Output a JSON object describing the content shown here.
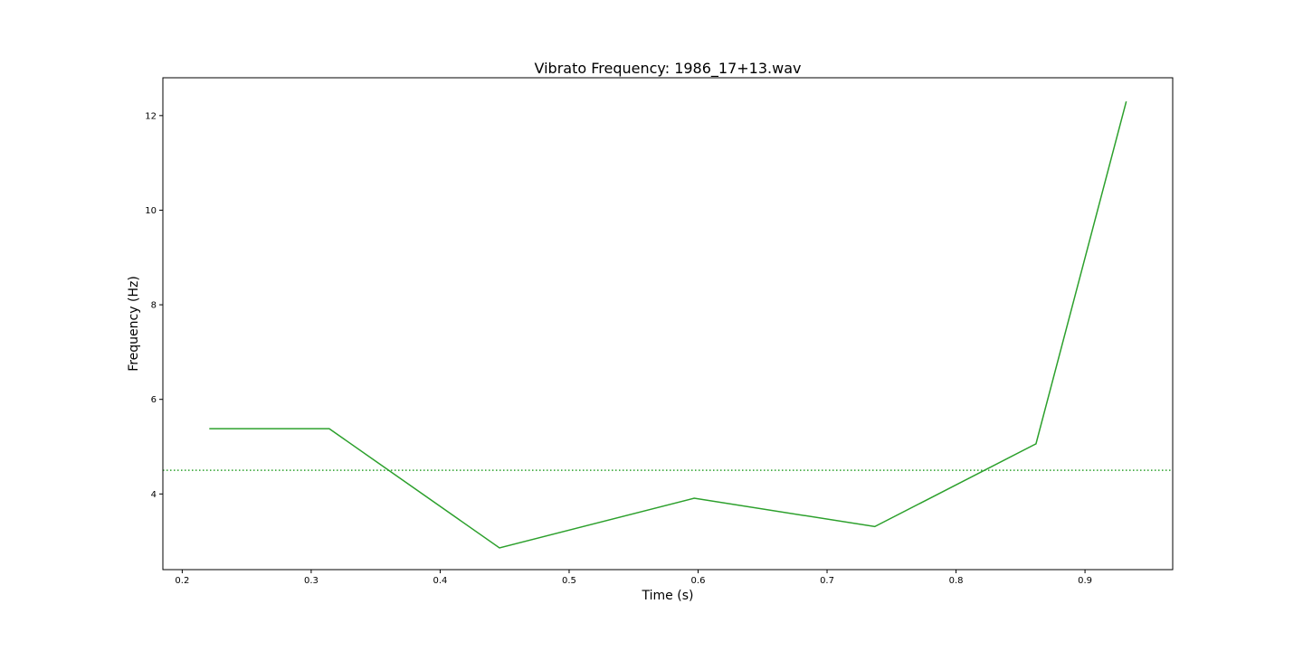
{
  "chart_data": {
    "type": "line",
    "title": "Vibrato Frequency: 1986_17+13.wav",
    "xlabel": "Time (s)",
    "ylabel": "Frequency (Hz)",
    "xlim": [
      0.185,
      0.968
    ],
    "ylim": [
      2.4,
      12.8
    ],
    "xticks": [
      0.2,
      0.3,
      0.4,
      0.5,
      0.6,
      0.7,
      0.8,
      0.9
    ],
    "xtick_labels": [
      "0.2",
      "0.3",
      "0.4",
      "0.5",
      "0.6",
      "0.7",
      "0.8",
      "0.9"
    ],
    "yticks": [
      4,
      6,
      8,
      10,
      12
    ],
    "ytick_labels": [
      "4",
      "6",
      "8",
      "10",
      "12"
    ],
    "grid": false,
    "series": [
      {
        "color": "#2ca02c",
        "style": "solid",
        "x": [
          0.221,
          0.314,
          0.446,
          0.597,
          0.737,
          0.862,
          0.932
        ],
        "y": [
          5.38,
          5.38,
          2.86,
          3.91,
          3.31,
          5.06,
          12.3
        ]
      }
    ],
    "reference_lines": [
      {
        "color": "#2ca02c",
        "style": "dotted",
        "y": 4.5
      }
    ]
  }
}
